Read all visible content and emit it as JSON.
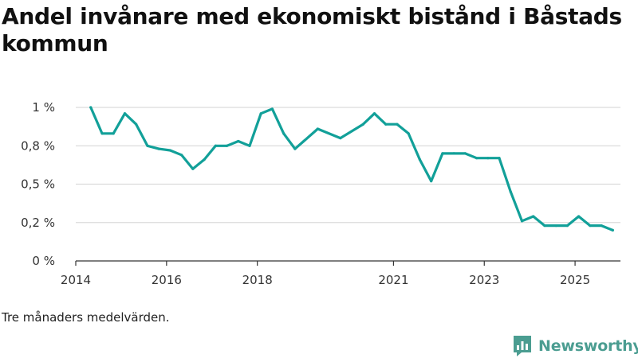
{
  "chart_data": {
    "type": "line",
    "title": "Andel invånare med ekonomiskt bistånd i Båstads kommun",
    "xlabel": "",
    "ylabel": "",
    "yticks": [
      0,
      0.25,
      0.5,
      0.75,
      1.0
    ],
    "ytick_labels": [
      "0 %",
      "0,2 %",
      "0,5 %",
      "0,8 %",
      "1 %"
    ],
    "ylim": [
      0,
      1.0
    ],
    "xlim": [
      2014.0,
      2026.0
    ],
    "xticks": [
      2014,
      2016,
      2018,
      2021,
      2023,
      2025
    ],
    "xtick_labels": [
      "2014",
      "2016",
      "2018",
      "2021",
      "2023",
      "2025"
    ],
    "line_color": "#12a099",
    "grid_color": "#dcdcdc",
    "series": [
      {
        "name": "Andel invånare med ekonomiskt bistånd",
        "x": [
          2014.33,
          2014.58,
          2014.83,
          2015.08,
          2015.33,
          2015.58,
          2015.83,
          2016.08,
          2016.33,
          2016.58,
          2016.83,
          2017.08,
          2017.33,
          2017.58,
          2017.83,
          2018.08,
          2018.33,
          2018.58,
          2018.83,
          2019.33,
          2019.83,
          2020.33,
          2020.58,
          2020.83,
          2021.08,
          2021.33,
          2021.58,
          2021.83,
          2022.08,
          2022.33,
          2022.58,
          2022.83,
          2023.08,
          2023.33,
          2023.58,
          2023.83,
          2024.08,
          2024.33,
          2024.58,
          2024.83,
          2025.08,
          2025.33,
          2025.58,
          2025.83
        ],
        "values": [
          1.0,
          0.83,
          0.83,
          0.96,
          0.89,
          0.75,
          0.73,
          0.72,
          0.69,
          0.6,
          0.66,
          0.75,
          0.75,
          0.78,
          0.75,
          0.96,
          0.99,
          0.83,
          0.73,
          0.86,
          0.8,
          0.89,
          0.96,
          0.89,
          0.89,
          0.83,
          0.66,
          0.52,
          0.7,
          0.7,
          0.7,
          0.67,
          0.67,
          0.67,
          0.45,
          0.26,
          0.29,
          0.23,
          0.23,
          0.23,
          0.29,
          0.23,
          0.23,
          0.2
        ]
      }
    ]
  },
  "footer": {
    "note": "Tre månaders medelvärden.",
    "brand_name": "Newsworthy",
    "logo_icon": "newsworthy-logo-icon",
    "brand_color": "#4b9d91"
  }
}
